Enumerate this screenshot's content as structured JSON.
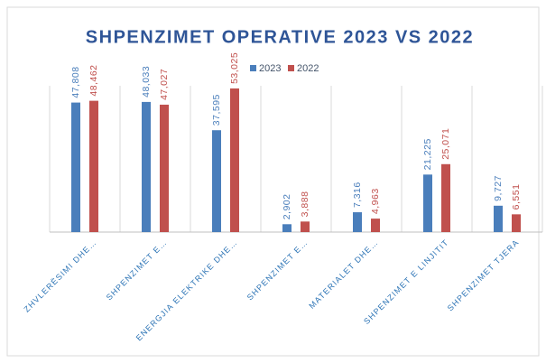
{
  "chart_data": {
    "type": "bar",
    "title": "SHPENZIMET OPERATIVE 2023 VS 2022",
    "categories": [
      "ZHVLERËSIMI DHE…",
      "SHPENZIMET E…",
      "ENERGJIA ELEKTRIKE DHE…",
      "SHPENZIMET E…",
      "MATERIALET DHE…",
      "SHPENZIMET E LINJITIT",
      "SHPENZIMET TJERA"
    ],
    "series": [
      {
        "name": "2023",
        "color": "#4a7ebb",
        "values": [
          47808,
          48033,
          37595,
          2902,
          7316,
          21225,
          9727
        ],
        "value_labels": [
          "47,808",
          "48,033",
          "37,595",
          "2,902",
          "7,316",
          "21,225",
          "9,727"
        ]
      },
      {
        "name": "2022",
        "color": "#c0504d",
        "values": [
          48462,
          47027,
          53025,
          3888,
          4963,
          25071,
          6551
        ],
        "value_labels": [
          "48,462",
          "47,027",
          "53,025",
          "3,888",
          "4,963",
          "25,071",
          "6,551"
        ]
      }
    ],
    "ylim": [
      0,
      60000
    ],
    "legend": "top"
  }
}
